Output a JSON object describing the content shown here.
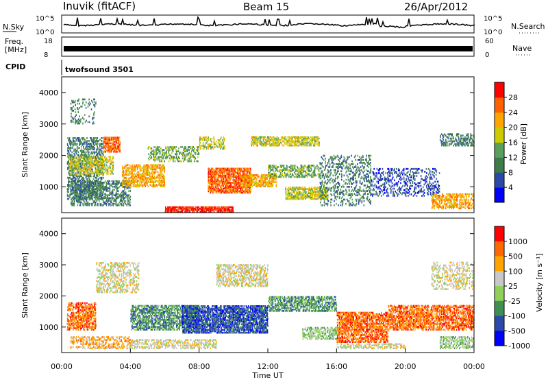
{
  "header": {
    "station": "Inuvik (fitACF)",
    "beam": "Beam 15",
    "date": "26/Apr/2012"
  },
  "noise_panel": {
    "left_label": "N.Sky",
    "right_label": "N.Search",
    "left_ticks": [
      "10^5",
      "10^0"
    ],
    "right_ticks": [
      "10^5",
      "10^0"
    ]
  },
  "freq_panel": {
    "left_label_1": "Freq.",
    "left_label_2": "[MHz]",
    "right_label": "Nave",
    "left_ticks": [
      "18",
      "8"
    ],
    "right_ticks": [
      "60",
      "0"
    ]
  },
  "cpid_panel": {
    "label": "CPID",
    "program": "twofsound 3501"
  },
  "colors": {
    "power_scale": [
      "#0000ff",
      "#2b4aa8",
      "#3f7a4a",
      "#58a05c",
      "#cccc00",
      "#ffa500",
      "#ff6000",
      "#ff0000"
    ],
    "velocity_scale": [
      "#ff0000",
      "#ff6a00",
      "#ffa500",
      "#c8c8c8",
      "#8fd05a",
      "#3f8f55",
      "#2b4aa8",
      "#0000ff"
    ]
  },
  "chart_data": [
    {
      "type": "heatmap",
      "name": "power",
      "ylabel": "Slant Range [km]",
      "ylim": [
        180,
        4500
      ],
      "yticks": [
        "1000",
        "2000",
        "3000",
        "4000"
      ],
      "xlim": [
        "00:00",
        "24:00"
      ],
      "colorbar_label": "Power [dB]",
      "colorbar_ticks": [
        "4",
        "8",
        "12",
        "16",
        "20",
        "24",
        "28"
      ],
      "colorbar_range": [
        0,
        32
      ]
    },
    {
      "type": "heatmap",
      "name": "velocity",
      "ylabel": "Slant Range [km]",
      "ylim": [
        180,
        4500
      ],
      "yticks": [
        "1000",
        "2000",
        "3000",
        "4000"
      ],
      "xlabel": "Time UT",
      "xticks": [
        "00:00",
        "04:00",
        "08:00",
        "12:00",
        "16:00",
        "20:00",
        "00:00"
      ],
      "colorbar_label": "Velocity [m s⁻¹]",
      "colorbar_ticks": [
        "1000",
        "500",
        "100",
        "25",
        "-25",
        "-100",
        "-500",
        "-1000"
      ]
    }
  ]
}
